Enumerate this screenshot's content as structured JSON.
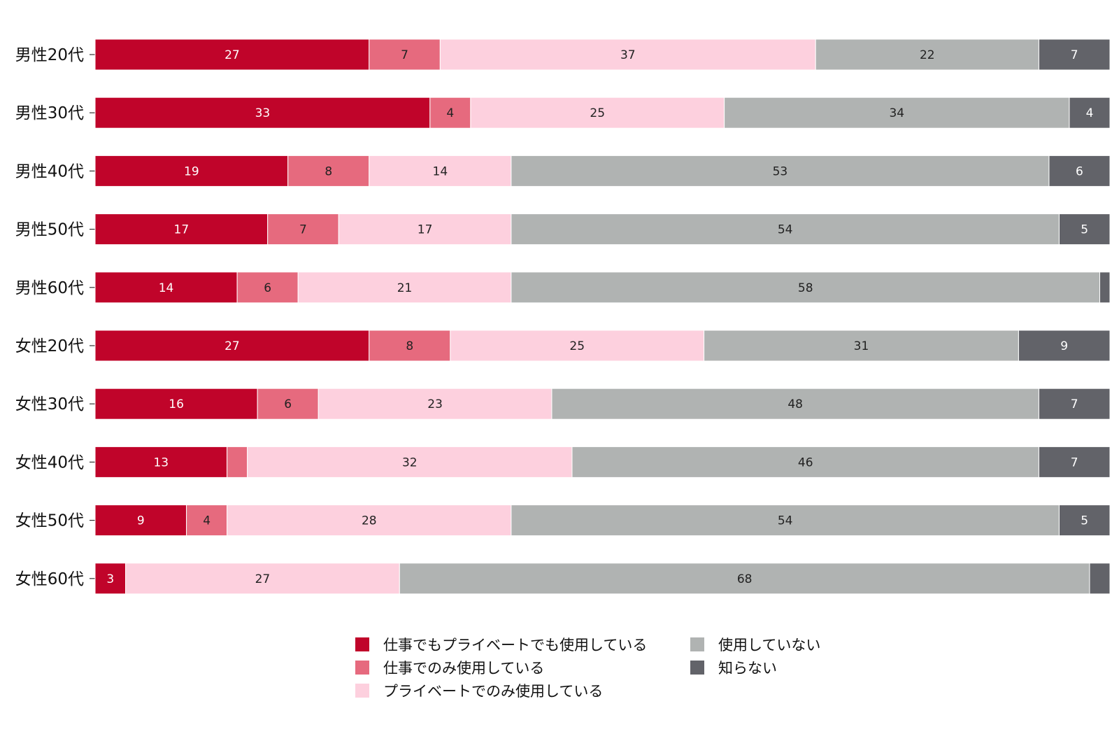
{
  "chart_data": {
    "type": "bar",
    "orientation": "horizontal",
    "stacked": true,
    "categories": [
      "男性20代",
      "男性30代",
      "男性40代",
      "男性50代",
      "男性60代",
      "女性20代",
      "女性30代",
      "女性40代",
      "女性50代",
      "女性60代"
    ],
    "series": [
      {
        "name": "仕事でもプライベートでも使用している",
        "color": "#c0042a",
        "values": [
          27,
          33,
          19,
          17,
          14,
          27,
          16,
          13,
          9,
          3
        ]
      },
      {
        "name": "仕事でのみ使用している",
        "color": "#e66a7e",
        "values": [
          7,
          4,
          8,
          7,
          6,
          8,
          6,
          2,
          4,
          0
        ]
      },
      {
        "name": "プライベートでのみ使用している",
        "color": "#fdd0de",
        "values": [
          37,
          25,
          14,
          17,
          21,
          25,
          23,
          32,
          28,
          27
        ]
      },
      {
        "name": "使用していない",
        "color": "#b0b3b2",
        "values": [
          22,
          34,
          53,
          54,
          58,
          31,
          48,
          46,
          54,
          68
        ]
      },
      {
        "name": "知らない",
        "color": "#626369",
        "values": [
          7,
          4,
          6,
          5,
          1,
          9,
          7,
          7,
          5,
          2
        ]
      }
    ],
    "data_labels": [
      [
        "27",
        "7",
        "37",
        "22",
        "7"
      ],
      [
        "33",
        "4",
        "25",
        "34",
        "4"
      ],
      [
        "19",
        "8",
        "14",
        "53",
        "6"
      ],
      [
        "17",
        "7",
        "17",
        "54",
        "5"
      ],
      [
        "14",
        "6",
        "21",
        "58",
        ""
      ],
      [
        "27",
        "8",
        "25",
        "31",
        "9"
      ],
      [
        "16",
        "6",
        "23",
        "48",
        "7"
      ],
      [
        "13",
        "",
        "32",
        "46",
        "7"
      ],
      [
        "9",
        "4",
        "28",
        "54",
        "5"
      ],
      [
        "3",
        "",
        "27",
        "68",
        ""
      ]
    ],
    "label_colors": [
      "#ffffff",
      "#222222",
      "#222222",
      "#222222",
      "#ffffff"
    ],
    "xlim": [
      0,
      100
    ],
    "grid": false,
    "legend_position": "bottom"
  }
}
